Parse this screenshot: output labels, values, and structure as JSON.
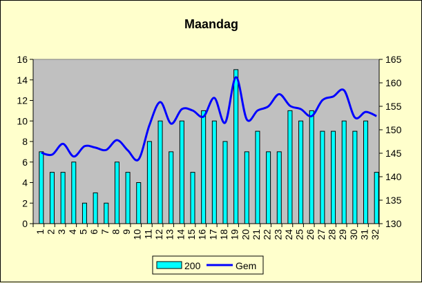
{
  "chart_data": {
    "type": "bar",
    "title": "Maandag",
    "categories": [
      "1",
      "2",
      "3",
      "4",
      "5",
      "6",
      "7",
      "8",
      "9",
      "10",
      "11",
      "12",
      "13",
      "14",
      "15",
      "16",
      "17",
      "18",
      "19",
      "20",
      "21",
      "22",
      "23",
      "24",
      "25",
      "26",
      "27",
      "28",
      "29",
      "30",
      "31",
      "32"
    ],
    "series": [
      {
        "name": "200",
        "type": "bar",
        "axis": "left",
        "color": "#00FFFF",
        "values": [
          7,
          5,
          5,
          6,
          2,
          3,
          2,
          6,
          5,
          4,
          8,
          10,
          7,
          10,
          5,
          11,
          10,
          8,
          15,
          7,
          9,
          7,
          7,
          11,
          10,
          11,
          9,
          9,
          10,
          9,
          10,
          5
        ]
      },
      {
        "name": "Gem",
        "type": "line",
        "axis": "right",
        "color": "#0000FF",
        "values": [
          145.1,
          144.7,
          147,
          144.3,
          146.5,
          146.2,
          145.7,
          147.8,
          145.6,
          143.7,
          151,
          155.9,
          151.3,
          154.4,
          154.1,
          152.8,
          156.8,
          151.5,
          161.2,
          152.2,
          154.1,
          155,
          157.6,
          155.1,
          154.4,
          152.9,
          156.3,
          157.1,
          158.4,
          152.6,
          153.8,
          152.9
        ]
      }
    ],
    "ylim": [
      0,
      16
    ],
    "yticks": [
      "0",
      "2",
      "4",
      "6",
      "8",
      "10",
      "12",
      "14",
      "16"
    ],
    "y2lim": [
      130,
      165
    ],
    "y2ticks": [
      "130",
      "135",
      "140",
      "145",
      "150",
      "155",
      "160",
      "165"
    ],
    "legend": "bottom",
    "grid": false,
    "plot_bg": "#C0C0C0",
    "chart_bg": "#FFFFCC"
  }
}
